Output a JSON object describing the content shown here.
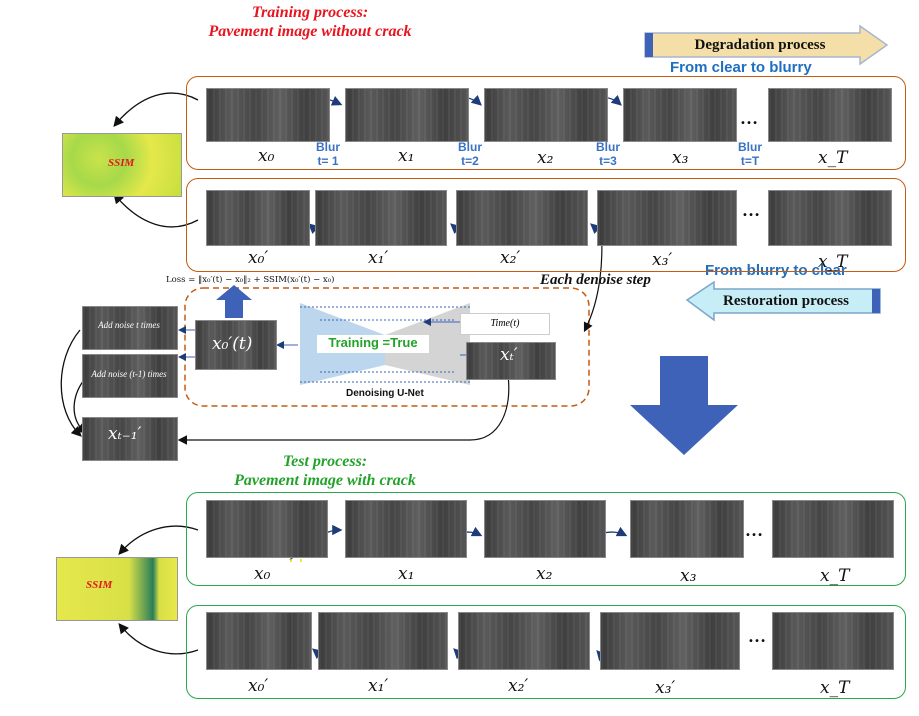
{
  "training": {
    "title_line1": "Training process:",
    "title_line2": "Pavement image without crack"
  },
  "test": {
    "title_line1": "Test process:",
    "title_line2": "Pavement image with crack"
  },
  "degradation": {
    "label": "Degradation process",
    "subtitle": "From clear to blurry"
  },
  "restoration": {
    "label": "Restoration process",
    "subtitle": "From blurry to clear"
  },
  "each_step": "Each denoise step",
  "forward_labels": [
    "x₀",
    "x₁",
    "x₂",
    "x₃",
    "x_T"
  ],
  "reverse_labels": [
    "x₀′",
    "x₁′",
    "x₂′",
    "x₃′",
    "x_T"
  ],
  "blur_steps": [
    {
      "word": "Blur",
      "t": "t= 1"
    },
    {
      "word": "Blur",
      "t": "t=2"
    },
    {
      "word": "Blur",
      "t": "t=3"
    },
    {
      "word": "Blur",
      "t": "t=T"
    }
  ],
  "ssim_label": "SSIM",
  "loss_formula": "Loss = ‖x₀′(t) − x₀‖₂ + SSIM(x₀′(t) − x₀)",
  "unet": {
    "training_flag": "Training =True",
    "caption": "Denoising U-Net",
    "time_input": "Time(t)",
    "output_label": "x₀′(t)",
    "input_label": "xₜ′"
  },
  "noise": {
    "add_t": "Add noise t times",
    "add_t1": "Add noise (t-1) times",
    "result_label": "xₜ₋₁′"
  },
  "ellipsis": "…",
  "colors": {
    "red": "#e8141e",
    "green": "#22a32a",
    "blue_label": "#1f6fc0",
    "train_border": "#c55a11",
    "test_border": "#2aa84a",
    "big_arrow": "#3d62b8"
  }
}
